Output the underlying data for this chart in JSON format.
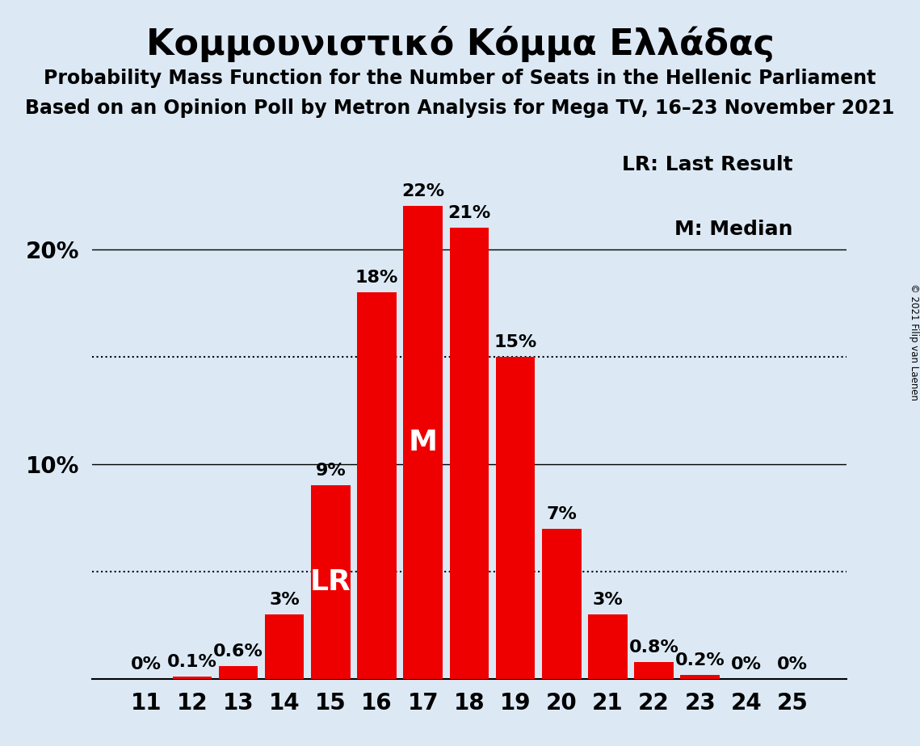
{
  "title": "Κομμουνιστικό Κόμμα Ελλάδας",
  "subtitle1": "Probability Mass Function for the Number of Seats in the Hellenic Parliament",
  "subtitle2": "Based on an Opinion Poll by Metron Analysis for Mega TV, 16–23 November 2021",
  "copyright": "© 2021 Filip van Laenen",
  "seats": [
    11,
    12,
    13,
    14,
    15,
    16,
    17,
    18,
    19,
    20,
    21,
    22,
    23,
    24,
    25
  ],
  "probabilities": [
    0.0,
    0.1,
    0.6,
    3.0,
    9.0,
    18.0,
    22.0,
    21.0,
    15.0,
    7.0,
    3.0,
    0.8,
    0.2,
    0.0,
    0.0
  ],
  "bar_color": "#ee0000",
  "background_color": "#dce9f5",
  "last_result_seat": 15,
  "median_seat": 17,
  "lr_label": "LR",
  "median_label": "M",
  "legend_lr": "LR: Last Result",
  "legend_m": "M: Median",
  "solid_lines": [
    0,
    10,
    20
  ],
  "dotted_lines": [
    5.0,
    15.0
  ],
  "ylim": [
    0,
    25
  ],
  "title_fontsize": 32,
  "subtitle_fontsize": 17,
  "tick_fontsize": 20,
  "bar_label_fontsize": 16,
  "legend_fontsize": 18,
  "inside_label_fontsize": 26
}
